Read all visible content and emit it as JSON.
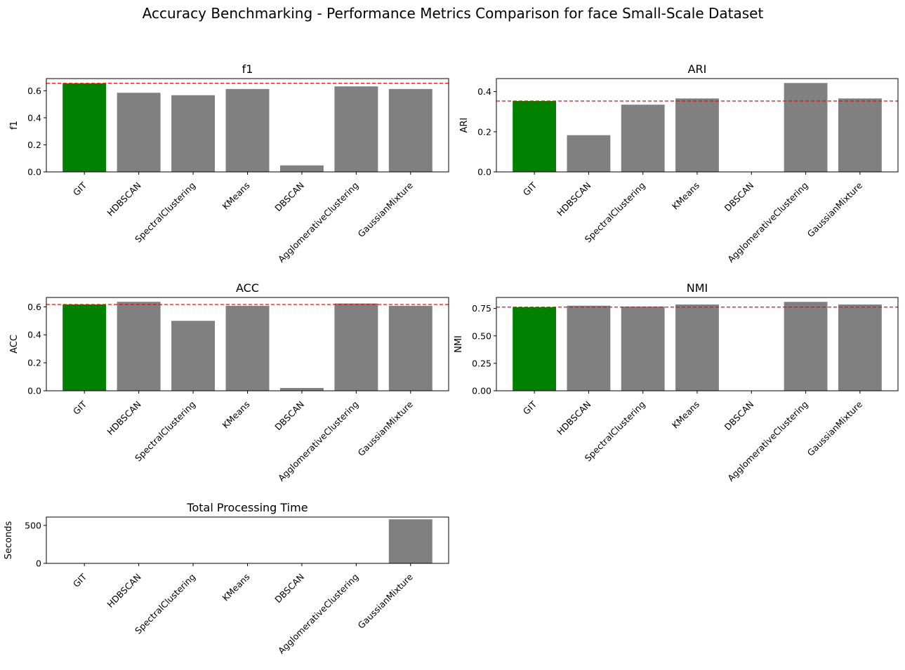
{
  "suptitle": "Accuracy Benchmarking - Performance Metrics Comparison for face Small-Scale Dataset",
  "colors": {
    "highlight": "#008000",
    "bar": "#808080",
    "reference": "#ff0000"
  },
  "chart_data": [
    {
      "type": "bar",
      "title": "f1",
      "ylabel": "f1",
      "categories": [
        "GIT",
        "HDBSCAN",
        "SpectralClustering",
        "KMeans",
        "DBSCAN",
        "AgglomerativeClustering",
        "GaussianMixture"
      ],
      "values": [
        0.655,
        0.585,
        0.567,
        0.613,
        0.048,
        0.632,
        0.613
      ],
      "ylim": [
        0,
        0.69
      ],
      "yticks": [
        0.0,
        0.2,
        0.4,
        0.6
      ],
      "ytick_labels": [
        "0.0",
        "0.2",
        "0.4",
        "0.6"
      ],
      "highlight_index": 0,
      "reference_line": 0.655
    },
    {
      "type": "bar",
      "title": "ARI",
      "ylabel": "ARI",
      "categories": [
        "GIT",
        "HDBSCAN",
        "SpectralClustering",
        "KMeans",
        "DBSCAN",
        "AgglomerativeClustering",
        "GaussianMixture"
      ],
      "values": [
        0.353,
        0.183,
        0.335,
        0.366,
        0.0,
        0.443,
        0.366
      ],
      "ylim": [
        0,
        0.465
      ],
      "yticks": [
        0.0,
        0.2,
        0.4
      ],
      "ytick_labels": [
        "0.0",
        "0.2",
        "0.4"
      ],
      "highlight_index": 0,
      "reference_line": 0.353
    },
    {
      "type": "bar",
      "title": "ACC",
      "ylabel": "ACC",
      "categories": [
        "GIT",
        "HDBSCAN",
        "SpectralClustering",
        "KMeans",
        "DBSCAN",
        "AgglomerativeClustering",
        "GaussianMixture"
      ],
      "values": [
        0.617,
        0.636,
        0.5,
        0.607,
        0.02,
        0.624,
        0.607
      ],
      "ylim": [
        0,
        0.667
      ],
      "yticks": [
        0.0,
        0.2,
        0.4,
        0.6
      ],
      "ytick_labels": [
        "0.0",
        "0.2",
        "0.4",
        "0.6"
      ],
      "highlight_index": 0,
      "reference_line": 0.617
    },
    {
      "type": "bar",
      "title": "NMI",
      "ylabel": "NMI",
      "categories": [
        "GIT",
        "HDBSCAN",
        "SpectralClustering",
        "KMeans",
        "DBSCAN",
        "AgglomerativeClustering",
        "GaussianMixture"
      ],
      "values": [
        0.762,
        0.775,
        0.768,
        0.786,
        0.0,
        0.81,
        0.786
      ],
      "ylim": [
        0,
        0.85
      ],
      "yticks": [
        0.0,
        0.25,
        0.5,
        0.75
      ],
      "ytick_labels": [
        "0.00",
        "0.25",
        "0.50",
        "0.75"
      ],
      "highlight_index": 0,
      "reference_line": 0.762
    },
    {
      "type": "bar",
      "title": "Total Processing Time",
      "ylabel": "Seconds",
      "categories": [
        "GIT",
        "HDBSCAN",
        "SpectralClustering",
        "KMeans",
        "DBSCAN",
        "AgglomerativeClustering",
        "GaussianMixture"
      ],
      "values": [
        0.5,
        0.5,
        0.8,
        0.4,
        0.3,
        0.6,
        580
      ],
      "ylim": [
        0,
        610
      ],
      "yticks": [
        0,
        500
      ],
      "ytick_labels": [
        "0",
        "500"
      ],
      "highlight_index": null,
      "reference_line": null
    }
  ]
}
